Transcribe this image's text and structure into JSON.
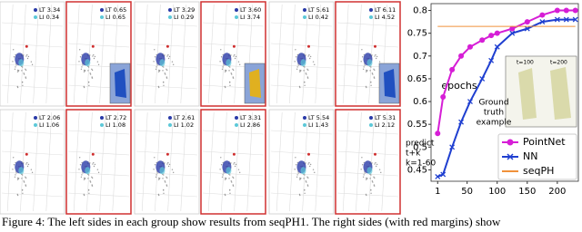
{
  "panels": [
    {
      "legend": [
        "LT 3.34",
        "LI 0.34"
      ]
    },
    {
      "legend": [
        "LT 0.65",
        "LI 0.65"
      ]
    },
    {
      "legend": [
        "LT 3.29",
        "LI 0.29"
      ]
    },
    {
      "legend": [
        "LT 3.60",
        "LI 3.74"
      ]
    },
    {
      "legend": [
        "LT 5.61",
        "LI 0.42"
      ]
    },
    {
      "legend": [
        "LT 6.11",
        "LI 4.52"
      ]
    },
    {
      "legend": [
        "LT 2.06",
        "LI 1.06"
      ]
    },
    {
      "legend": [
        "LT 2.72",
        "LI 1.08"
      ]
    },
    {
      "legend": [
        "LT 2.61",
        "LI 1.02"
      ]
    },
    {
      "legend": [
        "LT 3.31",
        "LI 2.86"
      ]
    },
    {
      "legend": [
        "LT 5.54",
        "LI 1.43"
      ]
    },
    {
      "legend": [
        "LT 5.31",
        "LI 2.12"
      ]
    }
  ],
  "chart_data": {
    "type": "line",
    "xlabel": "epochs",
    "x": [
      1,
      10,
      25,
      40,
      55,
      75,
      90,
      100,
      125,
      150,
      175,
      200,
      215,
      230
    ],
    "series": [
      {
        "name": "PointNet",
        "color": "#d61ed6",
        "marker": "circle",
        "values": [
          0.53,
          0.61,
          0.67,
          0.7,
          0.72,
          0.735,
          0.745,
          0.75,
          0.76,
          0.775,
          0.79,
          0.8,
          0.8,
          0.8
        ]
      },
      {
        "name": "NN",
        "color": "#1f3fd0",
        "marker": "x",
        "values": [
          0.435,
          0.44,
          0.5,
          0.555,
          0.6,
          0.65,
          0.69,
          0.72,
          0.75,
          0.76,
          0.775,
          0.78,
          0.78,
          0.78
        ]
      },
      {
        "name": "seqPH",
        "color": "#f0913a",
        "marker": "none",
        "values": [
          0.765,
          0.765,
          0.765,
          0.765,
          0.765,
          0.765,
          0.765,
          0.765,
          0.765,
          0.765,
          0.765,
          0.765,
          0.765,
          0.765
        ]
      }
    ],
    "xlim": [
      -10,
      235
    ],
    "ylim": [
      0.425,
      0.815
    ],
    "xticks": [
      1,
      50,
      100,
      150,
      200
    ],
    "yticks": [
      0.45,
      0.5,
      0.55,
      0.6,
      0.65,
      0.7,
      0.75,
      0.8
    ],
    "annotations": {
      "predict": [
        "predict",
        "t+k",
        "k=1-60"
      ],
      "ground_truth": [
        "Ground",
        "truth",
        "example"
      ],
      "inset": [
        "t=100",
        "t=200"
      ]
    },
    "legend": "lower right"
  },
  "caption": "Figure 4: The left sides in each group show results from seqPH1. The right sides (with red margins) show"
}
